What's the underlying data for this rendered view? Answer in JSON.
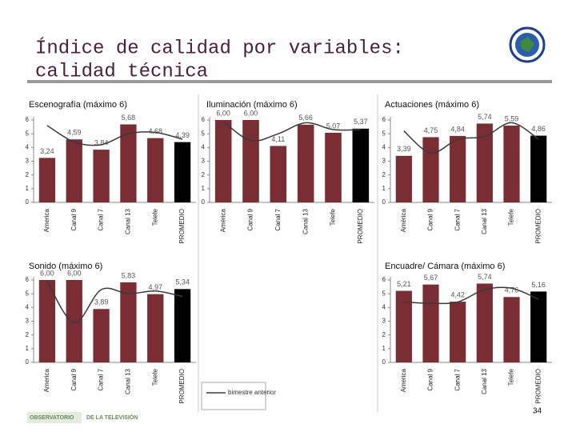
{
  "header": {
    "title": [
      "Índice de calidad por variables:",
      "calidad técnica"
    ]
  },
  "legend": {
    "label": "bimestre anterior",
    "color": "#3a3a3a"
  },
  "chart_data": [
    {
      "type": "bar",
      "title": "Escenografía (máximo 6)",
      "categories": [
        "America",
        "Canal 9",
        "Canal 7",
        "Canal 13",
        "Telefe",
        "PROMEDIO"
      ],
      "values": [
        3.24,
        4.59,
        3.84,
        5.68,
        4.68,
        4.39
      ],
      "value_labels": [
        "3,24",
        "4,59",
        "3,84",
        "5,68",
        "4,68",
        "4,39"
      ],
      "colors": [
        "#7b2d34",
        "#7b2d34",
        "#7b2d34",
        "#7b2d34",
        "#7b2d34",
        "#000000"
      ],
      "previous_values": [
        5.6,
        4.4,
        4.2,
        5.0,
        5.1,
        4.6
      ],
      "ylim": [
        0,
        6
      ],
      "yticks": [
        0,
        1,
        2,
        3,
        4,
        5,
        6
      ]
    },
    {
      "type": "bar",
      "title": "Iluminación (máximo 6)",
      "categories": [
        "América",
        "Canal 9",
        "Canal 7",
        "Canal 13",
        "Telefe",
        "PROMEDIO"
      ],
      "values": [
        6.0,
        6.0,
        4.11,
        5.66,
        5.07,
        5.37
      ],
      "value_labels": [
        "6,00",
        "6,00",
        "4,11",
        "5,66",
        "5,07",
        "5,37"
      ],
      "colors": [
        "#7b2d34",
        "#7b2d34",
        "#7b2d34",
        "#7b2d34",
        "#7b2d34",
        "#000000"
      ],
      "previous_values": [
        5.9,
        4.5,
        5.0,
        5.8,
        5.3,
        5.3
      ],
      "ylim": [
        0,
        6
      ],
      "yticks": [
        0,
        1,
        2,
        3,
        4,
        5,
        6
      ]
    },
    {
      "type": "bar",
      "title": "Actuaciones (máximo 6)",
      "categories": [
        "América",
        "Canal 9",
        "Canal 7",
        "Canal 13",
        "Telefe",
        "PROMEDIO"
      ],
      "values": [
        3.39,
        4.75,
        4.84,
        5.74,
        5.59,
        4.86
      ],
      "value_labels": [
        "3,39",
        "4,75",
        "4,84",
        "5,74",
        "5,59",
        "4,86"
      ],
      "colors": [
        "#7b2d34",
        "#7b2d34",
        "#7b2d34",
        "#7b2d34",
        "#7b2d34",
        "#000000"
      ],
      "previous_values": [
        5.2,
        3.6,
        4.6,
        4.8,
        5.8,
        4.6
      ],
      "ylim": [
        0,
        6
      ],
      "yticks": [
        0,
        1,
        2,
        3,
        4,
        5,
        6
      ]
    },
    {
      "type": "bar",
      "title": "Sonido (máximo 6)",
      "categories": [
        "America",
        "Canal 9",
        "Canal 7",
        "Canal 13",
        "Telefe",
        "PROMEDIO"
      ],
      "values": [
        6.0,
        6.0,
        3.89,
        5.83,
        4.97,
        5.34
      ],
      "value_labels": [
        "6,00",
        "6,00",
        "3,89",
        "5,83",
        "4,97",
        "5,34"
      ],
      "colors": [
        "#7b2d34",
        "#7b2d34",
        "#7b2d34",
        "#7b2d34",
        "#7b2d34",
        "#000000"
      ],
      "previous_values": [
        5.9,
        2.9,
        5.3,
        5.0,
        5.2,
        4.8
      ],
      "ylim": [
        0,
        6
      ],
      "yticks": [
        0,
        1,
        2,
        3,
        4,
        5,
        6
      ]
    },
    {
      "type": "bar",
      "title": "Encuadre/ Cámara (máximo 6)",
      "categories": [
        "America",
        "Canal 9",
        "Canal 7",
        "Canal 13",
        "Telefe",
        "PROMEDIO"
      ],
      "values": [
        5.21,
        5.67,
        4.42,
        5.74,
        4.76,
        5.16
      ],
      "value_labels": [
        "5,21",
        "5,67",
        "4,42",
        "5,74",
        "4,76",
        "5,16"
      ],
      "colors": [
        "#7b2d34",
        "#7b2d34",
        "#7b2d34",
        "#7b2d34",
        "#7b2d34",
        "#000000"
      ],
      "previous_values": [
        4.4,
        4.3,
        4.4,
        5.3,
        5.4,
        4.6
      ],
      "ylim": [
        0,
        6
      ],
      "yticks": [
        0,
        1,
        2,
        3,
        4,
        5,
        6
      ]
    }
  ],
  "footer": {
    "logo_left": "OBSERVATORIO",
    "logo_right": "DE LA TELEVISIÓN",
    "page": "34"
  }
}
